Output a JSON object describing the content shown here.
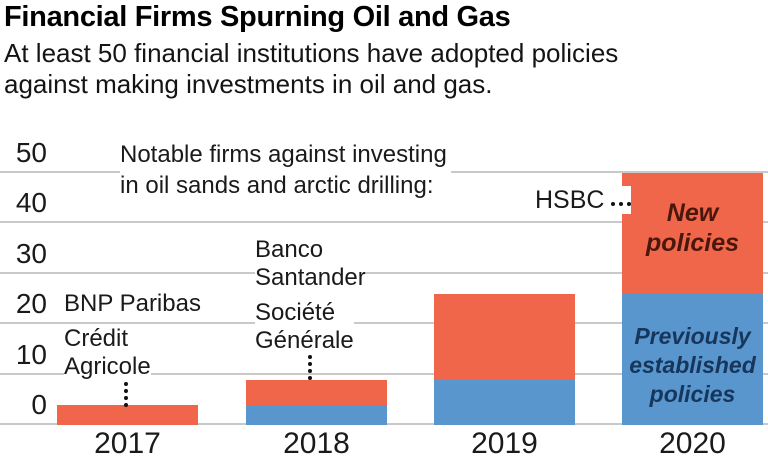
{
  "header": {
    "title": "Financial Firms Spurning Oil and Gas",
    "subtitle_line1": "At least 50 financial institutions have adopted policies",
    "subtitle_line2": "against making investments in oil and gas."
  },
  "chart_data": {
    "type": "bar",
    "stacked": true,
    "title": "Financial Firms Spurning Oil and Gas",
    "xlabel": "",
    "ylabel": "",
    "categories": [
      "2017",
      "2018",
      "2019",
      "2020"
    ],
    "series": [
      {
        "name": "Previously established policies",
        "color": "#5996CD",
        "values": [
          0,
          4,
          9,
          26
        ]
      },
      {
        "name": "New policies",
        "color": "#F0664A",
        "values": [
          4,
          5,
          17,
          24
        ]
      }
    ],
    "totals": [
      4,
      9,
      26,
      50
    ],
    "ylim": [
      0,
      50
    ],
    "yticks": [
      0,
      10,
      20,
      30,
      40,
      50
    ],
    "grid": "horizontal",
    "note_line1": "Notable firms against investing",
    "note_line2": "in oil sands and arctic drilling:",
    "firm_labels": {
      "bnp": "BNP Paribas",
      "credit_line1": "Crédit",
      "credit_line2": "Agricole",
      "banco_line1": "Banco",
      "banco_line2": "Santander",
      "societe_line1": "Société",
      "societe_line2": "Générale",
      "hsbc": "HSBC"
    },
    "segment_labels": {
      "new_line1": "New",
      "new_line2": "policies",
      "prev_line1": "Previously",
      "prev_line2": "established",
      "prev_line3": "policies"
    },
    "colors": {
      "new_segment": "#F0664A",
      "previous_segment": "#5996CD",
      "new_label_text": "#4A170D",
      "previous_label_text": "#16365C",
      "gridline": "#C9C9C9",
      "text": "#1A1A1A"
    }
  }
}
